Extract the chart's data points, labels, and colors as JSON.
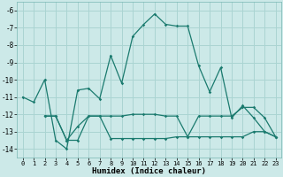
{
  "xlabel": "Humidex (Indice chaleur)",
  "ylabel": "",
  "bg_color": "#cce9e8",
  "grid_color": "#aad4d2",
  "line_color": "#1a7a6e",
  "xlim": [
    -0.5,
    23.5
  ],
  "ylim": [
    -14.5,
    -5.5
  ],
  "yticks": [
    -6,
    -7,
    -8,
    -9,
    -10,
    -11,
    -12,
    -13,
    -14
  ],
  "xticks": [
    0,
    1,
    2,
    3,
    4,
    5,
    6,
    7,
    8,
    9,
    10,
    11,
    12,
    13,
    14,
    15,
    16,
    17,
    18,
    19,
    20,
    21,
    22,
    23
  ],
  "line1_x": [
    0,
    1,
    2,
    3,
    4,
    5,
    6,
    7,
    8,
    9,
    10,
    11,
    12,
    13,
    14,
    15,
    16,
    17,
    18,
    19,
    20,
    21,
    22,
    23
  ],
  "line1_y": [
    -11.0,
    -11.3,
    -10.0,
    -13.5,
    -14.0,
    -10.6,
    -10.5,
    -11.1,
    -8.6,
    -10.2,
    -7.5,
    -6.8,
    -6.2,
    -6.8,
    -6.9,
    -6.9,
    -9.2,
    -10.7,
    -9.3,
    -12.2,
    -11.5,
    -12.2,
    -13.0,
    -13.3
  ],
  "line2_x": [
    2,
    3,
    4,
    5,
    6,
    7,
    8,
    9,
    10,
    11,
    12,
    13,
    14,
    15,
    16,
    17,
    18,
    19,
    20,
    21,
    22,
    23
  ],
  "line2_y": [
    -12.1,
    -12.1,
    -13.5,
    -12.7,
    -12.1,
    -12.1,
    -12.1,
    -12.1,
    -12.0,
    -12.0,
    -12.0,
    -12.1,
    -12.1,
    -13.3,
    -12.1,
    -12.1,
    -12.1,
    -12.1,
    -11.6,
    -11.6,
    -12.2,
    -13.3
  ],
  "line3_x": [
    2,
    3,
    4,
    5,
    6,
    7,
    8,
    9,
    10,
    11,
    12,
    13,
    14,
    15,
    16,
    17,
    18,
    19,
    20,
    21,
    22,
    23
  ],
  "line3_y": [
    -12.1,
    -12.1,
    -13.5,
    -13.5,
    -12.1,
    -12.1,
    -13.4,
    -13.4,
    -13.4,
    -13.4,
    -13.4,
    -13.4,
    -13.3,
    -13.3,
    -13.3,
    -13.3,
    -13.3,
    -13.3,
    -13.3,
    -13.0,
    -13.0,
    -13.3
  ]
}
